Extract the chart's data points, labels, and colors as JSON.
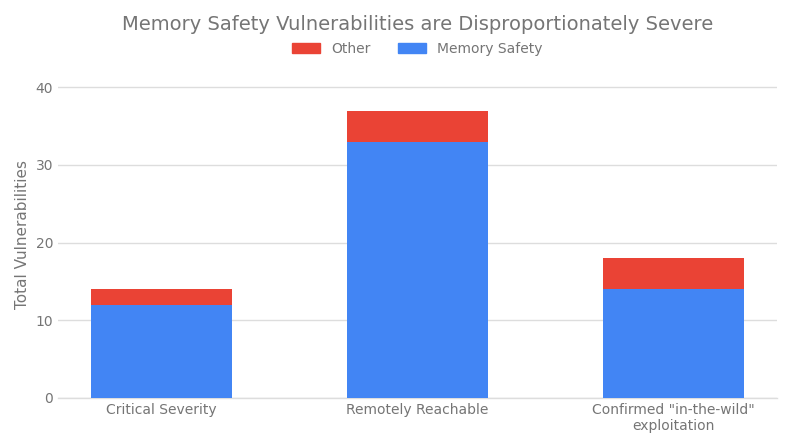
{
  "title": "Memory Safety Vulnerabilities are Disproportionately Severe",
  "categories": [
    "Critical Severity",
    "Remotely Reachable",
    "Confirmed \"in-the-wild\"\nexploitation"
  ],
  "memory_safety": [
    12,
    33,
    14
  ],
  "other": [
    2,
    4,
    4
  ],
  "color_memory_safety": "#4285F4",
  "color_other": "#EA4335",
  "ylabel": "Total Vulnerabilities",
  "ylim": [
    0,
    42
  ],
  "yticks": [
    0,
    10,
    20,
    30,
    40
  ],
  "legend_labels": [
    "Other",
    "Memory Safety"
  ],
  "background_color": "#ffffff",
  "title_color": "#757575",
  "tick_color": "#757575",
  "grid_color": "#dddddd",
  "bar_width": 0.55
}
